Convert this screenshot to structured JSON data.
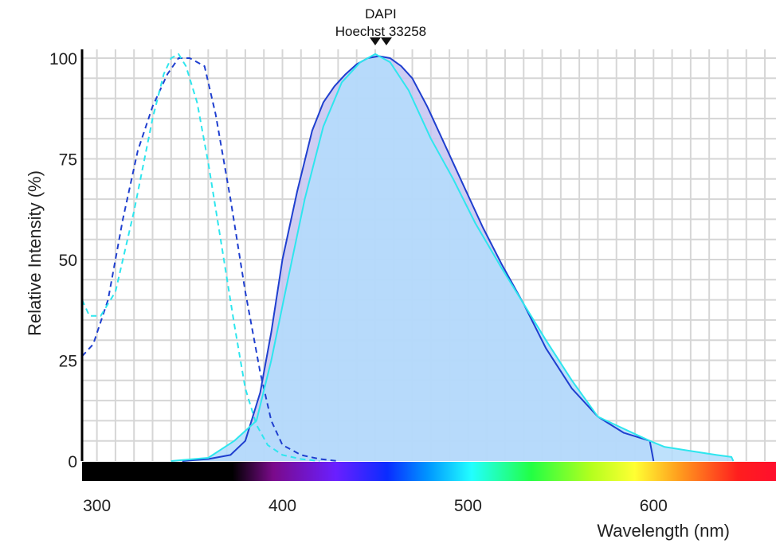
{
  "chart_data": {
    "type": "line",
    "title": "",
    "xlabel": "Wavelength (nm)",
    "ylabel": "Relative Intensity (%)",
    "xlim": [
      292,
      666
    ],
    "ylim": [
      0,
      102
    ],
    "x_ticks": [
      300,
      400,
      500,
      600
    ],
    "y_ticks": [
      0,
      25,
      50,
      75,
      100
    ],
    "grid": true,
    "peak_markers": [
      {
        "label": "DAPI",
        "x": 450
      },
      {
        "label": "Hoechst 33258",
        "x": 456
      }
    ],
    "spectrum_bar": {
      "visible_start_nm": 373,
      "end_nm": 666
    },
    "series": [
      {
        "kind": "excitation",
        "line_style": "dashed",
        "color": "#1f3fcf",
        "x": [
          292,
          298,
          306,
          314,
          322,
          330,
          338,
          344,
          350,
          358,
          364,
          372,
          380,
          388,
          394,
          400,
          410,
          420,
          430
        ],
        "y": [
          26,
          29,
          40,
          60,
          77,
          88,
          96,
          100,
          100,
          98,
          86,
          65,
          42,
          22,
          10,
          4,
          1.5,
          0.5,
          0
        ]
      },
      {
        "kind": "excitation",
        "line_style": "dashed",
        "color": "#2ee6ee",
        "x": [
          292,
          296,
          302,
          310,
          320,
          330,
          336,
          340,
          344,
          348,
          354,
          360,
          366,
          374,
          380,
          386,
          392,
          400,
          410,
          420
        ],
        "y": [
          40,
          36,
          36,
          42,
          62,
          85,
          96,
          100,
          101,
          98,
          89,
          74,
          57,
          34,
          18,
          9,
          4,
          1.5,
          0.5,
          0
        ]
      },
      {
        "kind": "emission",
        "line_style": "solid",
        "color": "#1f3fcf",
        "fill": "#c5c4f1",
        "x": [
          346,
          360,
          372,
          380,
          388,
          394,
          400,
          408,
          416,
          422,
          428,
          434,
          440,
          446,
          452,
          458,
          464,
          470,
          478,
          488,
          498,
          508,
          518,
          530,
          542,
          556,
          570,
          584,
          598,
          600
        ],
        "y": [
          0,
          0.5,
          1.5,
          5,
          17,
          32,
          50,
          67,
          82,
          89,
          93,
          96,
          98.5,
          100,
          100.5,
          100,
          98,
          95,
          88,
          78,
          68,
          58,
          49,
          39,
          28,
          18,
          11,
          7,
          5,
          0
        ]
      },
      {
        "kind": "emission",
        "line_style": "solid",
        "color": "#2ee6ee",
        "fill": "#b3dcfb",
        "x": [
          340,
          360,
          374,
          386,
          394,
          402,
          412,
          422,
          432,
          442,
          450,
          458,
          468,
          480,
          492,
          504,
          518,
          530,
          542,
          556,
          570,
          584,
          598,
          606,
          620,
          634,
          642,
          643
        ],
        "y": [
          0,
          0.8,
          5,
          10,
          25,
          43,
          65,
          83,
          94,
          99,
          101,
          99,
          92,
          80,
          70,
          59,
          48,
          39,
          30,
          20,
          11,
          8,
          5,
          3.5,
          2.5,
          1.5,
          1,
          0
        ]
      }
    ]
  }
}
